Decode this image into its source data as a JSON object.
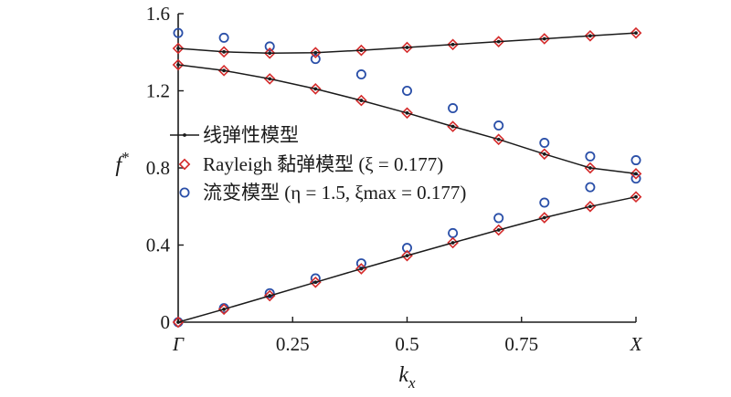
{
  "chart_data": {
    "type": "line",
    "xlabel": "k",
    "xlabel_sub": "x",
    "ylabel": "f",
    "ylabel_sup": "*",
    "xlim": [
      0,
      1
    ],
    "ylim": [
      0,
      1.6
    ],
    "x_ticks": [
      {
        "value": 0,
        "label": "Γ",
        "italic": true
      },
      {
        "value": 0.25,
        "label": "0.25",
        "italic": false
      },
      {
        "value": 0.5,
        "label": "0.5",
        "italic": false
      },
      {
        "value": 0.75,
        "label": "0.75",
        "italic": false
      },
      {
        "value": 1,
        "label": "X",
        "italic": true
      }
    ],
    "y_ticks": [
      {
        "value": 0,
        "label": "0"
      },
      {
        "value": 0.4,
        "label": "0.4"
      },
      {
        "value": 0.8,
        "label": "0.8"
      },
      {
        "value": 1.2,
        "label": "1.2"
      },
      {
        "value": 1.6,
        "label": "1.6"
      }
    ],
    "grid": false,
    "legend_position": "center",
    "legend": [
      {
        "text": "线弹性模型",
        "marker": "line-dot",
        "color": "#1a1a1a"
      },
      {
        "text": "Rayleigh 黏弹模型 (ξ = 0.177)",
        "marker": "diamond",
        "color": "#d42a2a"
      },
      {
        "text": "流变模型 (η = 1.5, ξmax = 0.177)",
        "marker": "circle",
        "color": "#2a4fa8"
      }
    ],
    "series": [
      {
        "name": "线弹性模型",
        "style": "line-dot",
        "color": "#1a1a1a",
        "branches": [
          {
            "x": [
              0.0,
              0.1,
              0.2,
              0.3,
              0.4,
              0.5,
              0.6,
              0.7,
              0.8,
              0.9,
              1.0
            ],
            "y": [
              0.0,
              0.067,
              0.137,
              0.207,
              0.277,
              0.345,
              0.412,
              0.478,
              0.542,
              0.6,
              0.65
            ]
          },
          {
            "x": [
              0.0,
              0.1,
              0.2,
              0.3,
              0.4,
              0.5,
              0.6,
              0.7,
              0.8,
              0.9,
              1.0
            ],
            "y": [
              1.335,
              1.305,
              1.262,
              1.21,
              1.15,
              1.085,
              1.015,
              0.948,
              0.872,
              0.8,
              0.77
            ]
          },
          {
            "x": [
              0.0,
              0.1,
              0.2,
              0.3,
              0.4,
              0.5,
              0.6,
              0.7,
              0.8,
              0.9,
              1.0
            ],
            "y": [
              1.42,
              1.402,
              1.395,
              1.398,
              1.41,
              1.425,
              1.44,
              1.455,
              1.47,
              1.485,
              1.5
            ]
          }
        ]
      },
      {
        "name": "Rayleigh 黏弹模型 (ξ = 0.177)",
        "style": "diamond",
        "color": "#d42a2a",
        "branches": [
          {
            "x": [
              0.0,
              0.1,
              0.2,
              0.3,
              0.4,
              0.5,
              0.6,
              0.7,
              0.8,
              0.9,
              1.0
            ],
            "y": [
              0.0,
              0.067,
              0.137,
              0.207,
              0.277,
              0.345,
              0.412,
              0.478,
              0.542,
              0.6,
              0.65
            ]
          },
          {
            "x": [
              0.0,
              0.1,
              0.2,
              0.3,
              0.4,
              0.5,
              0.6,
              0.7,
              0.8,
              0.9,
              1.0
            ],
            "y": [
              1.335,
              1.305,
              1.262,
              1.21,
              1.15,
              1.085,
              1.015,
              0.948,
              0.872,
              0.8,
              0.77
            ]
          },
          {
            "x": [
              0.0,
              0.1,
              0.2,
              0.3,
              0.4,
              0.5,
              0.6,
              0.7,
              0.8,
              0.9,
              1.0
            ],
            "y": [
              1.42,
              1.402,
              1.395,
              1.398,
              1.41,
              1.425,
              1.44,
              1.455,
              1.47,
              1.485,
              1.5
            ]
          }
        ]
      },
      {
        "name": "流变模型 (η = 1.5, ξmax = 0.177)",
        "style": "circle",
        "color": "#2a4fa8",
        "branches": [
          {
            "x": [
              0.0,
              0.1,
              0.2,
              0.3,
              0.4,
              0.5,
              0.6,
              0.7,
              0.8,
              0.9,
              1.0
            ],
            "y": [
              0.0,
              0.073,
              0.15,
              0.227,
              0.305,
              0.385,
              0.462,
              0.54,
              0.62,
              0.7,
              0.745
            ]
          },
          {
            "x": [
              0.0,
              0.1,
              0.2,
              0.3,
              0.4,
              0.5,
              0.6,
              0.7,
              0.8,
              0.9,
              1.0
            ],
            "y": [
              1.5,
              1.475,
              1.43,
              1.365,
              1.285,
              1.2,
              1.11,
              1.02,
              0.93,
              0.86,
              0.84
            ]
          }
        ]
      }
    ]
  }
}
